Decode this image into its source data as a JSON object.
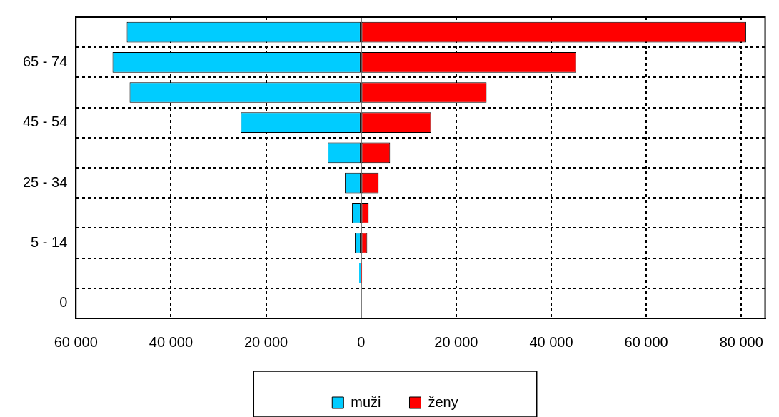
{
  "chart_data": {
    "type": "bar",
    "orientation": "horizontal",
    "stacked": true,
    "categories": [
      null,
      "65 - 74",
      null,
      "45 - 54",
      null,
      "25 - 34",
      null,
      "5 - 14",
      null,
      "0"
    ],
    "series": [
      {
        "name": "muži",
        "color": "#00ccff",
        "values": [
          -49300,
          -52300,
          -48700,
          -25300,
          -7000,
          -3400,
          -1900,
          -1300,
          -400,
          0
        ]
      },
      {
        "name": "ženy",
        "color": "#ff0000",
        "values": [
          81000,
          45200,
          26400,
          14700,
          6100,
          3700,
          1600,
          1300,
          200,
          0
        ]
      }
    ],
    "xlim": [
      -60000,
      85000
    ],
    "xticks": [
      {
        "value": -60000,
        "label": "60 000"
      },
      {
        "value": -40000,
        "label": "40 000"
      },
      {
        "value": -20000,
        "label": "20 000"
      },
      0,
      {
        "value": 20000,
        "label": "20 000"
      },
      {
        "value": 40000,
        "label": "40 000"
      },
      {
        "value": 60000,
        "label": "60 000"
      },
      {
        "value": 80000,
        "label": "80 000"
      }
    ],
    "grid": true,
    "legend": "bottom"
  }
}
